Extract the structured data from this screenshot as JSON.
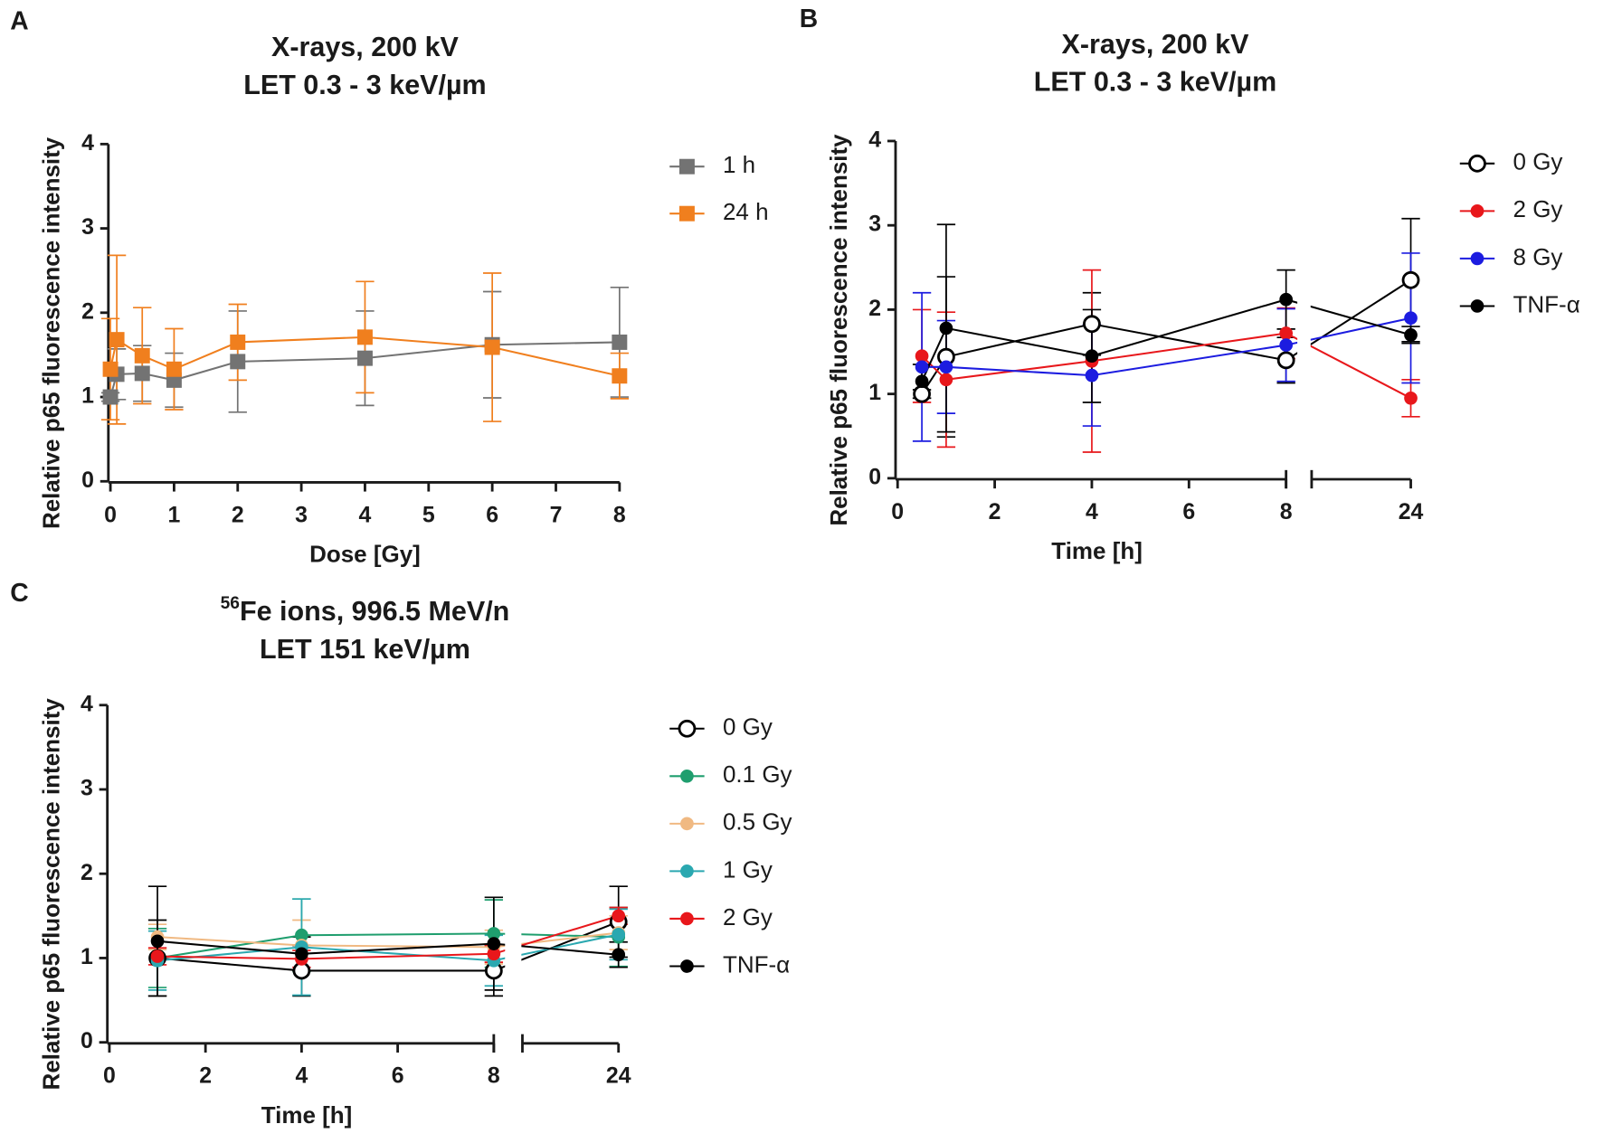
{
  "chart_data": [
    {
      "type": "line",
      "panel": "A",
      "title": [
        "X-rays, 200 kV",
        "LET 0.3 - 3 keV/µm"
      ],
      "xlabel": "Dose [Gy]",
      "ylabel": "Relative p65 fluorescence intensity",
      "x": [
        0,
        0.1,
        0.5,
        1,
        2,
        4,
        6,
        8
      ],
      "x_segments": [
        {
          "xlim": [
            0,
            8
          ],
          "xticks": [
            0,
            1,
            2,
            3,
            4,
            5,
            6,
            7,
            8
          ]
        }
      ],
      "ylim": [
        0,
        4
      ],
      "yticks": [
        0,
        1,
        2,
        3,
        4
      ],
      "marker": "square",
      "series": [
        {
          "name": "1 h",
          "color": "#737373",
          "values": [
            1.0,
            1.27,
            1.28,
            1.2,
            1.42,
            1.46,
            1.62,
            1.65
          ],
          "errors": [
            0.05,
            0.3,
            0.33,
            0.32,
            0.6,
            0.56,
            0.63,
            0.65
          ]
        },
        {
          "name": "24 h",
          "color": "#f07f1e",
          "values": [
            1.33,
            1.68,
            1.49,
            1.33,
            1.65,
            1.71,
            1.59,
            1.25
          ],
          "errors": [
            0.6,
            1.0,
            0.57,
            0.48,
            0.45,
            0.66,
            0.88,
            0.27
          ]
        }
      ]
    },
    {
      "type": "line",
      "panel": "B",
      "title": [
        "X-rays, 200 kV",
        "LET 0.3 - 3 keV/µm"
      ],
      "xlabel": "Time [h]",
      "ylabel": "Relative p65 fluorescence intensity",
      "x": [
        0.5,
        1,
        4,
        8,
        24
      ],
      "x_segments": [
        {
          "xlim": [
            0,
            8
          ],
          "xticks": [
            0,
            2,
            4,
            6,
            8
          ]
        },
        {
          "xlim": [
            22,
            24
          ],
          "xticks": [
            24
          ]
        }
      ],
      "ylim": [
        0,
        4
      ],
      "yticks": [
        0,
        1,
        2,
        3,
        4
      ],
      "marker": "circle",
      "series": [
        {
          "name": "0 Gy",
          "color": "#000000",
          "marker_fill": "#ffffff",
          "values": [
            1.0,
            1.44,
            1.83,
            1.4,
            2.35
          ],
          "errors": [
            0.05,
            0.95,
            0.37,
            0.27,
            0.73
          ]
        },
        {
          "name": "2 Gy",
          "color": "#e8171b",
          "values": [
            1.45,
            1.17,
            1.39,
            1.72,
            0.95
          ],
          "errors": [
            0.55,
            0.8,
            1.08,
            0.3,
            0.22
          ]
        },
        {
          "name": "8 Gy",
          "color": "#1c1ce0",
          "values": [
            1.32,
            1.32,
            1.22,
            1.58,
            1.9
          ],
          "errors": [
            0.88,
            0.55,
            0.6,
            0.43,
            0.77
          ]
        },
        {
          "name": "TNF-α",
          "color": "#000000",
          "values": [
            1.15,
            1.78,
            1.45,
            2.12,
            1.7
          ],
          "errors": [
            0.2,
            1.23,
            0.55,
            0.35,
            0.1
          ]
        }
      ]
    },
    {
      "type": "line",
      "panel": "C",
      "title_superscript": "56",
      "title": [
        "Fe ions, 996.5 MeV/n",
        "LET 151 keV/µm"
      ],
      "xlabel": "Time [h]",
      "ylabel": "Relative p65 fluorescence intensity",
      "x": [
        1,
        4,
        8,
        24
      ],
      "x_segments": [
        {
          "xlim": [
            0,
            8
          ],
          "xticks": [
            0,
            2,
            4,
            6,
            8
          ]
        },
        {
          "xlim": [
            22,
            24
          ],
          "xticks": [
            24
          ]
        }
      ],
      "ylim": [
        0,
        4
      ],
      "yticks": [
        0,
        1,
        2,
        3,
        4
      ],
      "marker": "circle",
      "series": [
        {
          "name": "0 Gy",
          "color": "#000000",
          "marker_fill": "#ffffff",
          "values": [
            1.0,
            0.85,
            0.85,
            1.43
          ],
          "errors": [
            0.45,
            0.3,
            0.3,
            0.42
          ]
        },
        {
          "name": "0.1 Gy",
          "color": "#1f9e6e",
          "values": [
            1.0,
            1.27,
            1.29,
            1.25
          ],
          "errors": [
            0.35,
            0.43,
            0.4,
            0.35
          ]
        },
        {
          "name": "0.5 Gy",
          "color": "#f0b982",
          "values": [
            1.25,
            1.15,
            1.13,
            1.3
          ],
          "errors": [
            0.15,
            0.3,
            0.2,
            0.2
          ]
        },
        {
          "name": "1 Gy",
          "color": "#2aa8b0",
          "values": [
            0.97,
            1.13,
            0.97,
            1.28
          ],
          "errors": [
            0.35,
            0.57,
            0.3,
            0.3
          ]
        },
        {
          "name": "2 Gy",
          "color": "#e8171b",
          "values": [
            1.02,
            0.99,
            1.05,
            1.5
          ],
          "errors": [
            0.1,
            0.1,
            0.1,
            0.1
          ]
        },
        {
          "name": "TNF-α",
          "color": "#000000",
          "values": [
            1.2,
            1.05,
            1.17,
            1.04
          ],
          "errors": [
            0.65,
            0.2,
            0.55,
            0.15
          ]
        }
      ]
    }
  ]
}
